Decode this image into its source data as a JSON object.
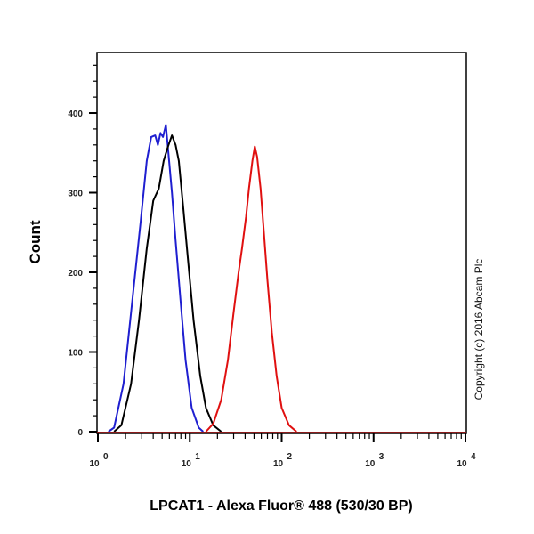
{
  "chart_data": {
    "type": "line",
    "subtype": "flow-cytometry-histogram-overlay",
    "title": "",
    "xlabel": "LPCAT1 - Alexa Fluor® 488 (530/30 BP)",
    "ylabel": "Count",
    "xscale": "log",
    "xlim": [
      1,
      10000
    ],
    "ylim": [
      0,
      476
    ],
    "x_tick_labels": [
      {
        "base": "10",
        "exp": "0"
      },
      {
        "base": "10",
        "exp": "1"
      },
      {
        "base": "10",
        "exp": "2"
      },
      {
        "base": "10",
        "exp": "3"
      },
      {
        "base": "10",
        "exp": "4"
      }
    ],
    "y_ticks": [
      0,
      100,
      200,
      300,
      400
    ],
    "grid": false,
    "legend": null,
    "series": [
      {
        "name": "blue-histogram",
        "color": "#1f1fd0",
        "points": [
          [
            1.3,
            0
          ],
          [
            1.5,
            5
          ],
          [
            1.9,
            60
          ],
          [
            2.3,
            150
          ],
          [
            2.9,
            260
          ],
          [
            3.4,
            340
          ],
          [
            3.8,
            370
          ],
          [
            4.2,
            372
          ],
          [
            4.5,
            360
          ],
          [
            4.8,
            375
          ],
          [
            5.1,
            370
          ],
          [
            5.5,
            385
          ],
          [
            5.9,
            345
          ],
          [
            6.4,
            300
          ],
          [
            7.0,
            240
          ],
          [
            8.0,
            160
          ],
          [
            9.0,
            90
          ],
          [
            10.5,
            30
          ],
          [
            12.5,
            5
          ],
          [
            14,
            0
          ]
        ]
      },
      {
        "name": "black-histogram",
        "color": "#000000",
        "points": [
          [
            1.5,
            0
          ],
          [
            1.8,
            8
          ],
          [
            2.3,
            60
          ],
          [
            2.8,
            140
          ],
          [
            3.4,
            230
          ],
          [
            4.0,
            290
          ],
          [
            4.6,
            305
          ],
          [
            5.2,
            340
          ],
          [
            5.8,
            358
          ],
          [
            6.4,
            372
          ],
          [
            7.0,
            360
          ],
          [
            7.6,
            340
          ],
          [
            8.5,
            280
          ],
          [
            9.5,
            220
          ],
          [
            11,
            140
          ],
          [
            13,
            70
          ],
          [
            15,
            30
          ],
          [
            18,
            8
          ],
          [
            22,
            0
          ]
        ]
      },
      {
        "name": "red-histogram",
        "color": "#e01010",
        "points": [
          [
            15,
            0
          ],
          [
            18,
            10
          ],
          [
            22,
            40
          ],
          [
            26,
            90
          ],
          [
            30,
            150
          ],
          [
            34,
            200
          ],
          [
            37,
            230
          ],
          [
            41,
            270
          ],
          [
            44,
            305
          ],
          [
            48,
            340
          ],
          [
            51,
            358
          ],
          [
            54,
            345
          ],
          [
            59,
            305
          ],
          [
            64,
            250
          ],
          [
            70,
            190
          ],
          [
            78,
            125
          ],
          [
            88,
            70
          ],
          [
            100,
            30
          ],
          [
            120,
            8
          ],
          [
            145,
            0
          ]
        ]
      }
    ]
  },
  "axes": {
    "x_title": "LPCAT1 - Alexa Fluor® 488 (530/30 BP)",
    "y_title": "Count",
    "y_tick_labels": [
      "0",
      "100",
      "200",
      "300",
      "400"
    ],
    "x_tick_labels": [
      {
        "base": "10",
        "exp": "0"
      },
      {
        "base": "10",
        "exp": "1"
      },
      {
        "base": "10",
        "exp": "2"
      },
      {
        "base": "10",
        "exp": "3"
      },
      {
        "base": "10",
        "exp": "4"
      }
    ]
  },
  "copyright": "Copyright (c) 2016 Abcam Plc",
  "colors": {
    "frame": "#000000",
    "blue": "#1f1fd0",
    "black": "#000000",
    "red": "#e01010",
    "baseline": "#8b1a1a"
  }
}
